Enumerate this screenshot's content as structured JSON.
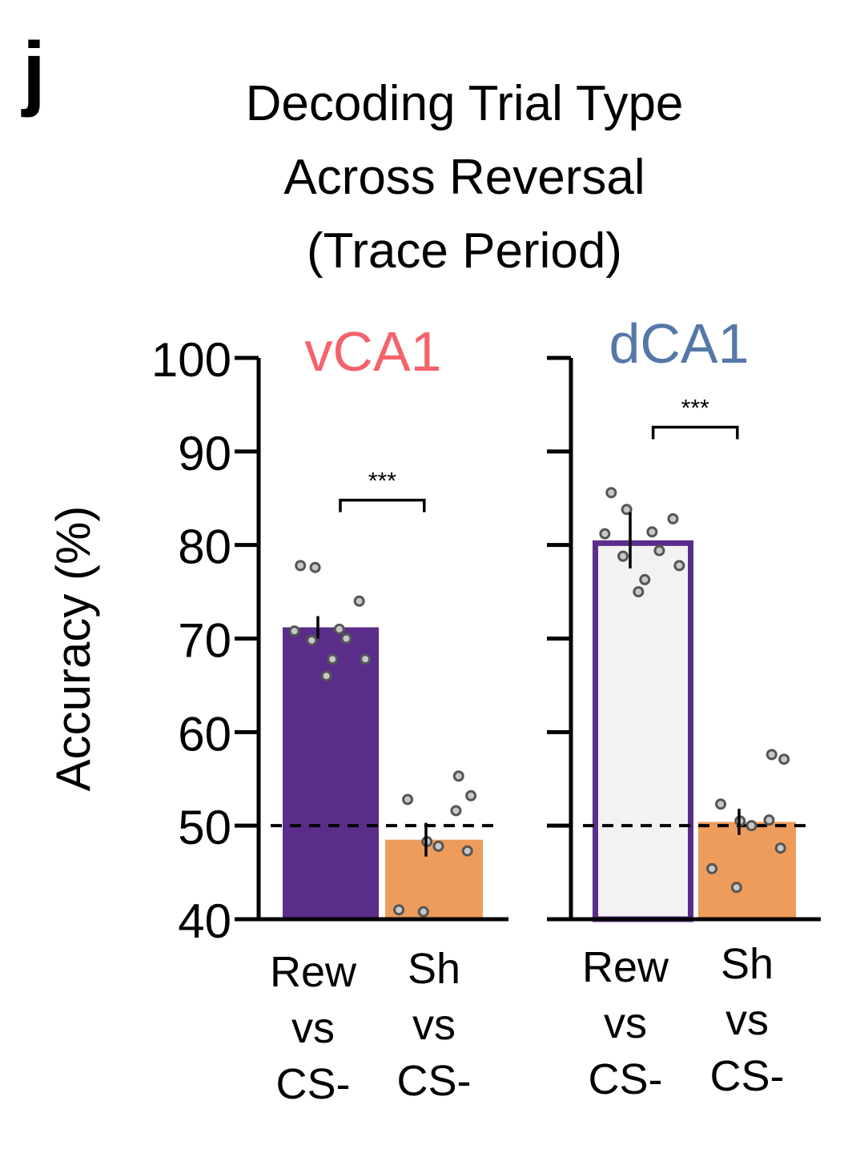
{
  "figure": {
    "panel_letter": "j",
    "title_lines": [
      "Decoding Trial Type",
      "Across Reversal",
      "(Trace Period)"
    ]
  },
  "chart_data": {
    "type": "bar",
    "ylabel": "Accuracy (%)",
    "ylim": [
      40,
      100
    ],
    "yticks": [
      40,
      50,
      60,
      70,
      80,
      90,
      100
    ],
    "chance_level": 50,
    "grid": false,
    "legend": "none",
    "panels": [
      {
        "name": "vCA1",
        "name_color": "#f4636b",
        "show_tick_labels": true,
        "significance": "***",
        "bars": [
          {
            "category_lines": [
              "Rew",
              "vs",
              "CS-"
            ],
            "value": 71.2,
            "error": 1.2,
            "fill": "#5b2d8a",
            "edge": "#5b2d8a",
            "points": [
              77.8,
              77.6,
              74.0,
              71.0,
              70.8,
              70.0,
              69.8,
              67.8,
              67.8,
              66.0
            ]
          },
          {
            "category_lines": [
              "Sh",
              "vs",
              "CS-"
            ],
            "value": 48.5,
            "error": 1.8,
            "fill": "#ee9c5b",
            "edge": "#ee9c5b",
            "points": [
              55.3,
              53.2,
              52.8,
              51.6,
              48.3,
              47.8,
              47.3,
              41.0,
              40.8
            ]
          }
        ]
      },
      {
        "name": "dCA1",
        "name_color": "#5578a8",
        "show_tick_labels": false,
        "significance": "***",
        "bars": [
          {
            "category_lines": [
              "Rew",
              "vs",
              "CS-"
            ],
            "value": 80.5,
            "error": 3.0,
            "fill": "#f2f2f2",
            "edge": "#5b2d8a",
            "points": [
              85.6,
              83.8,
              82.8,
              81.4,
              81.2,
              79.4,
              78.8,
              77.8,
              76.3,
              75.0
            ]
          },
          {
            "category_lines": [
              "Sh",
              "vs",
              "CS-"
            ],
            "value": 50.4,
            "error": 1.4,
            "fill": "#ee9c5b",
            "edge": "#ee9c5b",
            "points": [
              57.6,
              57.1,
              52.3,
              50.6,
              50.5,
              50.0,
              47.6,
              45.4,
              43.4
            ]
          }
        ]
      }
    ]
  }
}
